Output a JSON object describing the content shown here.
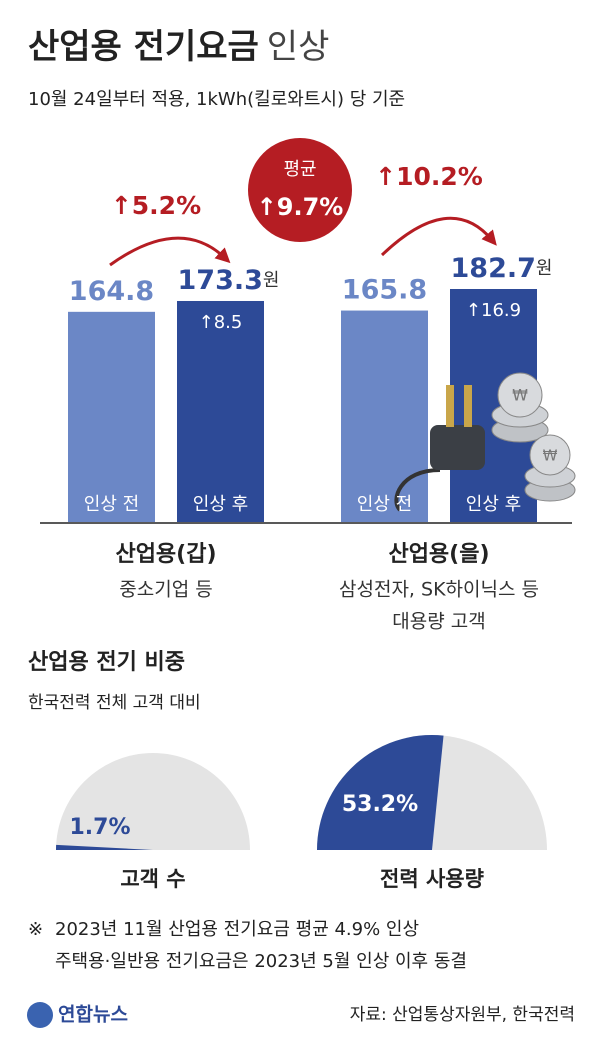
{
  "title": "산업용 전기요금",
  "title_suffix": "인상",
  "subtitle": "10월 24일부터 적용, 1kWh(킬로와트시) 당 기준",
  "average": {
    "label": "평균",
    "value_label": "↑9.7%"
  },
  "chart_data": [
    {
      "type": "bar",
      "categories": [
        "산업용(갑)",
        "산업용(을)"
      ],
      "category_notes": [
        [
          "중소기업 등"
        ],
        [
          "삼성전자, SK하이닉스 등",
          "대용량 고객"
        ]
      ],
      "unit": "원",
      "series": [
        {
          "name": "인상 전",
          "color": "#6b87c6",
          "values": [
            164.8,
            165.8
          ]
        },
        {
          "name": "인상 후",
          "color": "#2d4a97",
          "values": [
            173.3,
            182.7
          ]
        }
      ],
      "increase_labels": [
        "↑8.5",
        "↑16.9"
      ],
      "change_labels": [
        "↑5.2%",
        "↑10.2%"
      ]
    },
    {
      "type": "gauge",
      "title": "산업용 전기 비중",
      "subtitle": "한국전력 전체 고객 대비",
      "categories": [
        "고객 수",
        "전력 사용량"
      ],
      "values": [
        1.7,
        53.2
      ],
      "value_labels": [
        "1.7%",
        "53.2%"
      ],
      "color": "#2d4a97",
      "track_color": "#e4e4e4"
    }
  ],
  "notes": [
    "2023년 11월 산업용 전기요금 평균 4.9% 인상",
    "주택용·일반용 전기요금은 2023년 5월 인상 이후 동결"
  ],
  "note_mark": "※",
  "logo": "연합뉴스",
  "source": "자료: 산업통상자원부, 한국전력"
}
